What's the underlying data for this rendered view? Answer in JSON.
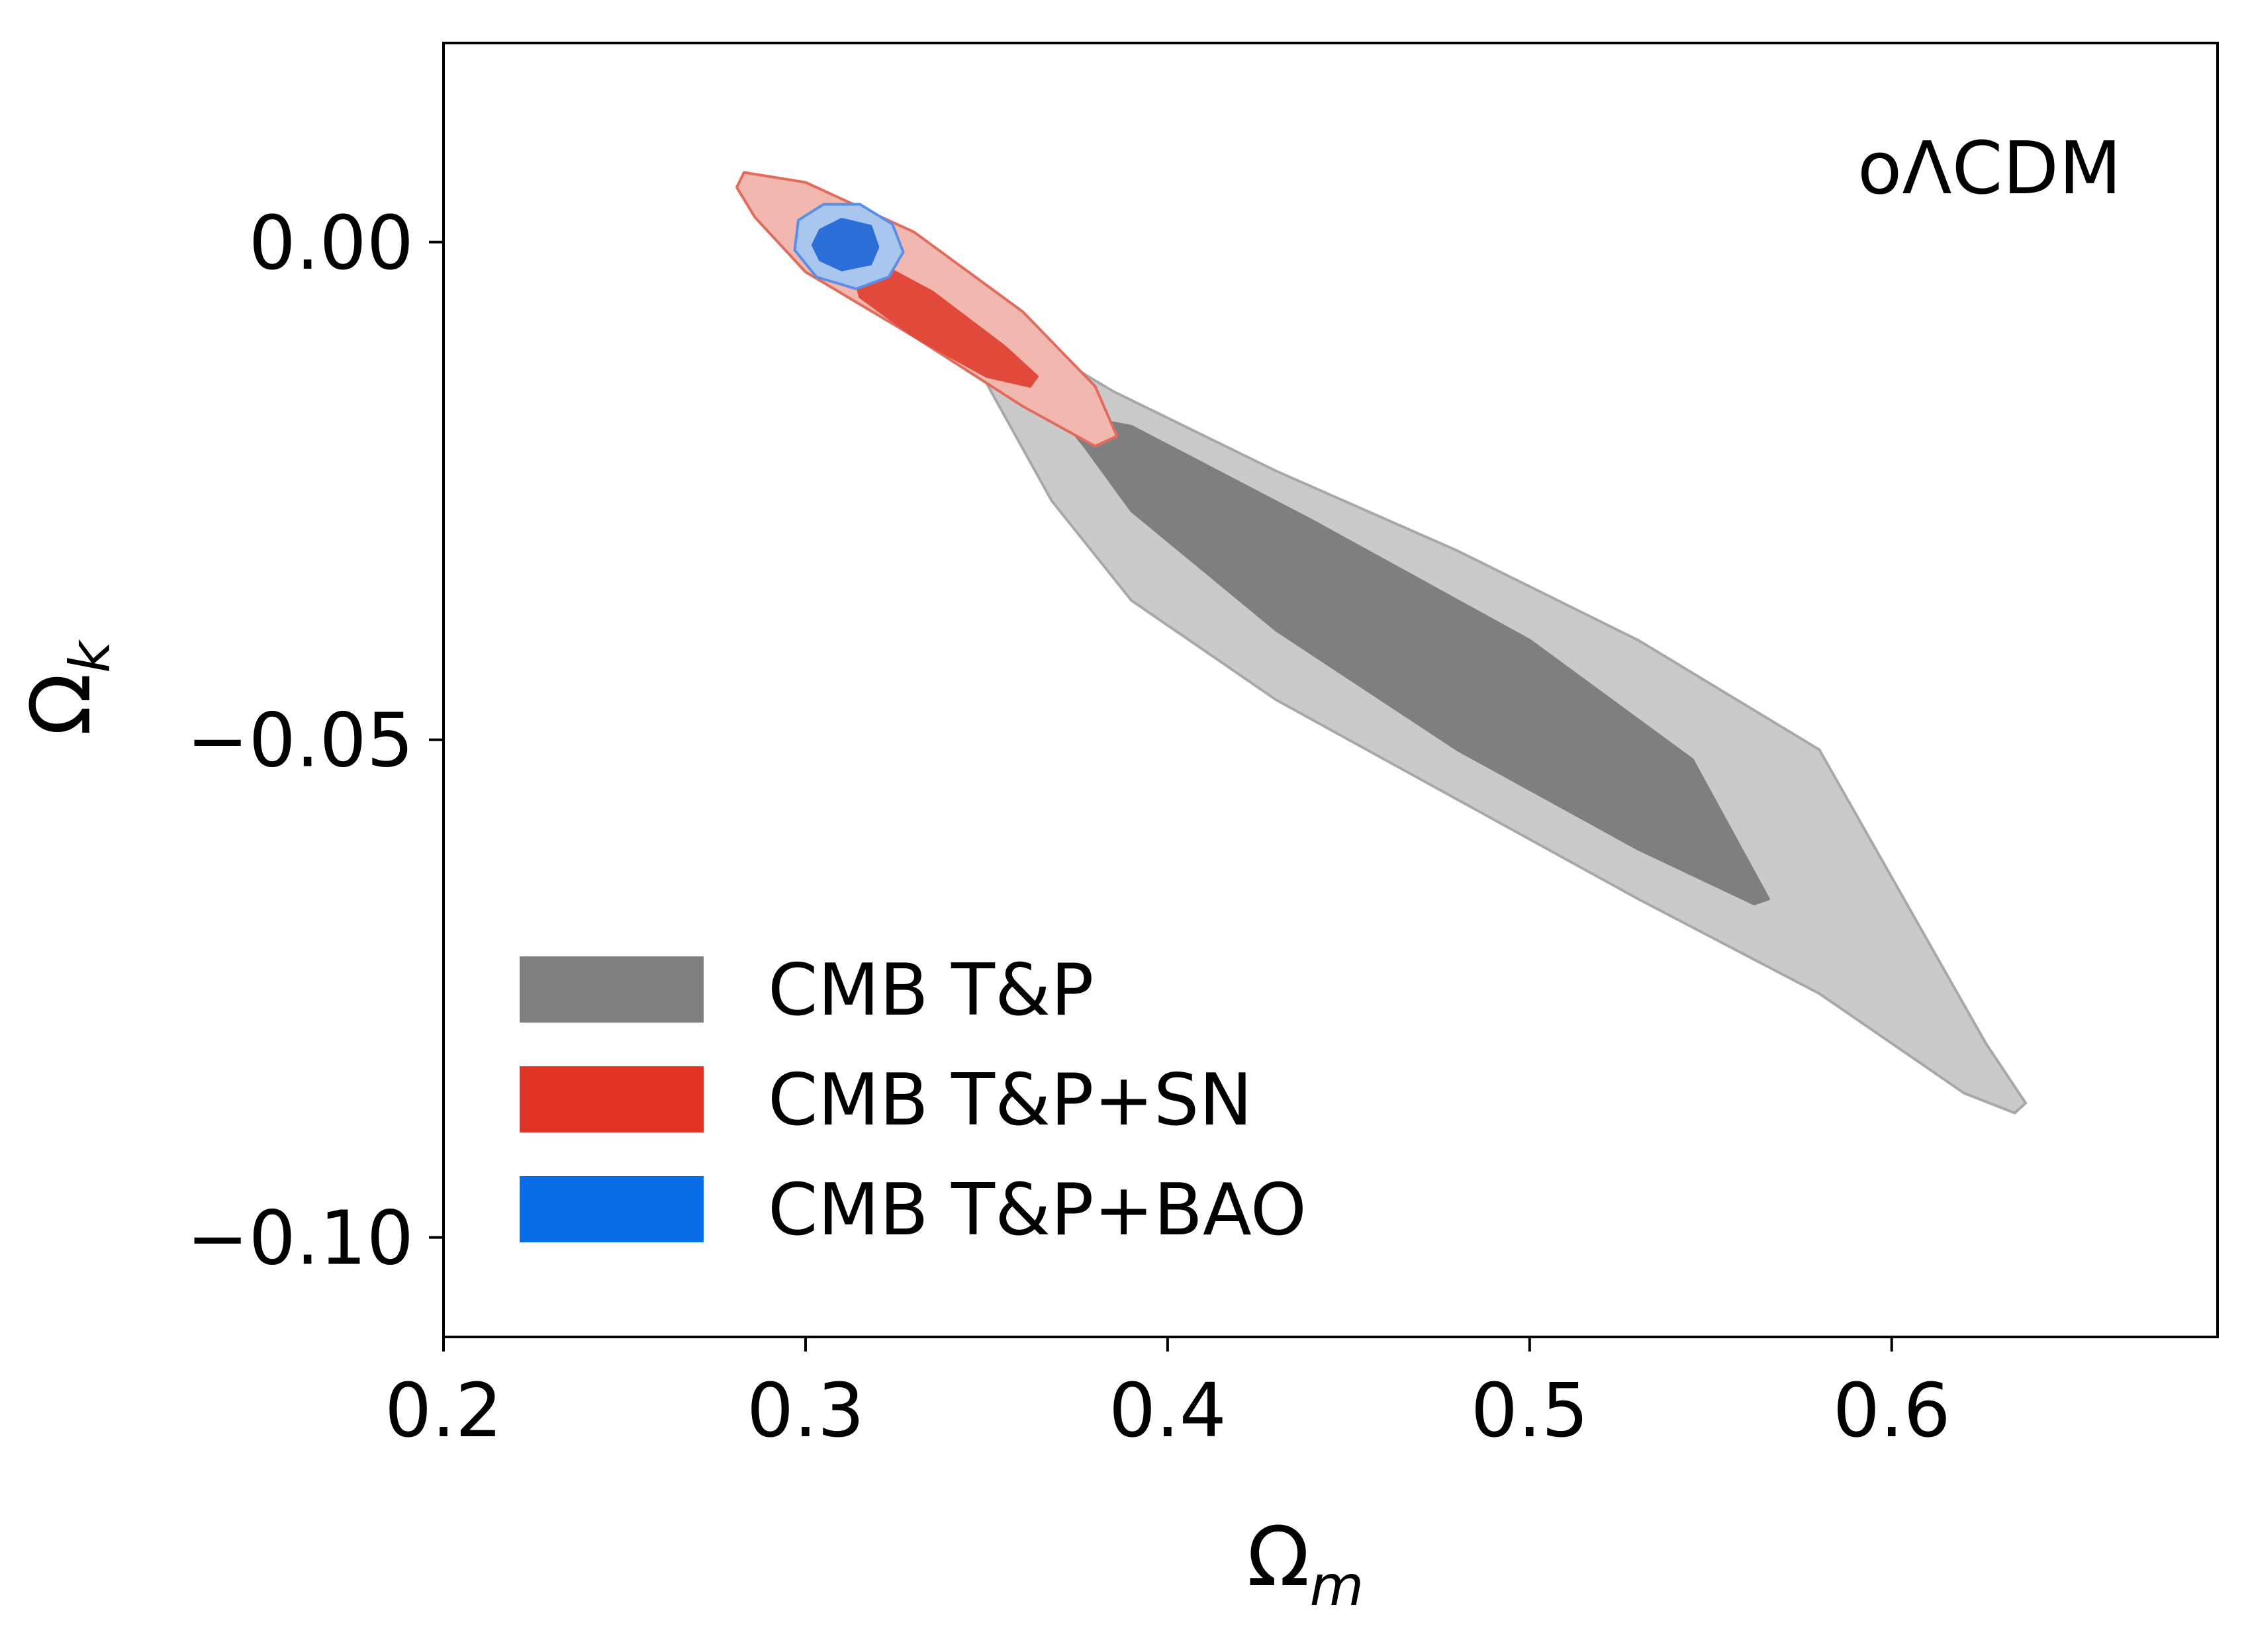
{
  "chart_data": {
    "type": "contour",
    "annotation": "oΛCDM",
    "xlabel": {
      "main": "Ω",
      "sub": "m"
    },
    "ylabel": {
      "main": "Ω",
      "sub": "k"
    },
    "xlim": [
      0.2,
      0.69
    ],
    "ylim": [
      -0.11,
      0.02
    ],
    "xticks": [
      0.2,
      0.3,
      0.4,
      0.5,
      0.6
    ],
    "xtick_labels": [
      "0.2",
      "0.3",
      "0.4",
      "0.5",
      "0.6"
    ],
    "yticks": [
      0.0,
      -0.05,
      -0.1
    ],
    "ytick_labels": [
      "0.00",
      "−0.05",
      "−0.10"
    ],
    "grid": false,
    "legend_position": "lower-left",
    "series": [
      {
        "name": "CMB T&P",
        "color_outer": "#cacaca",
        "color_inner": "#7f7f7f",
        "edge_outer": "#a8a8a8",
        "edge_inner": "#7f7f7f",
        "legend_color": "#808080",
        "contours": [
          [
            [
              0.342,
              -0.0065
            ],
            [
              0.355,
              -0.0085
            ],
            [
              0.385,
              -0.015
            ],
            [
              0.43,
              -0.023
            ],
            [
              0.48,
              -0.031
            ],
            [
              0.53,
              -0.04
            ],
            [
              0.58,
              -0.051
            ],
            [
              0.626,
              -0.0805
            ],
            [
              0.637,
              -0.0865
            ],
            [
              0.634,
              -0.0875
            ],
            [
              0.62,
              -0.0855
            ],
            [
              0.58,
              -0.0755
            ],
            [
              0.53,
              -0.066
            ],
            [
              0.48,
              -0.056
            ],
            [
              0.43,
              -0.046
            ],
            [
              0.39,
              -0.036
            ],
            [
              0.368,
              -0.026
            ],
            [
              0.352,
              -0.0155
            ],
            [
              0.343,
              -0.0095
            ],
            [
              0.339,
              -0.0072
            ]
          ],
          [
            [
              0.375,
              -0.0175
            ],
            [
              0.39,
              -0.0185
            ],
            [
              0.44,
              -0.028
            ],
            [
              0.5,
              -0.04
            ],
            [
              0.545,
              -0.052
            ],
            [
              0.566,
              -0.066
            ],
            [
              0.562,
              -0.0665
            ],
            [
              0.53,
              -0.061
            ],
            [
              0.48,
              -0.051
            ],
            [
              0.43,
              -0.039
            ],
            [
              0.39,
              -0.027
            ],
            [
              0.377,
              -0.0205
            ],
            [
              0.372,
              -0.0183
            ]
          ]
        ]
      },
      {
        "name": "CMB T&P+SN",
        "color_outer": "#f2b8b0",
        "color_inner": "#e14a3a",
        "edge_outer": "#e36b5c",
        "edge_inner": "#e14a3a",
        "legend_color": "#e03525",
        "contours": [
          [
            [
              0.283,
              0.007
            ],
            [
              0.3,
              0.006
            ],
            [
              0.33,
              0.001
            ],
            [
              0.36,
              -0.007
            ],
            [
              0.38,
              -0.0145
            ],
            [
              0.386,
              -0.0195
            ],
            [
              0.38,
              -0.0205
            ],
            [
              0.36,
              -0.0165
            ],
            [
              0.33,
              -0.0095
            ],
            [
              0.3,
              -0.003
            ],
            [
              0.286,
              0.0025
            ],
            [
              0.281,
              0.0055
            ]
          ],
          [
            [
              0.317,
              -0.0015
            ],
            [
              0.335,
              -0.005
            ],
            [
              0.355,
              -0.0105
            ],
            [
              0.364,
              -0.0135
            ],
            [
              0.362,
              -0.0145
            ],
            [
              0.35,
              -0.0135
            ],
            [
              0.33,
              -0.0095
            ],
            [
              0.315,
              -0.0055
            ],
            [
              0.313,
              -0.0025
            ]
          ]
        ]
      },
      {
        "name": "CMB T&P+BAO",
        "color_outer": "#a9c6ef",
        "color_inner": "#2c6ed8",
        "edge_outer": "#5b8ee6",
        "edge_inner": "#2c6ed8",
        "legend_color": "#0a6de8",
        "contours": [
          [
            [
              0.298,
              0.0022
            ],
            [
              0.305,
              0.0038
            ],
            [
              0.315,
              0.0038
            ],
            [
              0.324,
              0.0018
            ],
            [
              0.327,
              -0.001
            ],
            [
              0.323,
              -0.0035
            ],
            [
              0.314,
              -0.0047
            ],
            [
              0.303,
              -0.0035
            ],
            [
              0.297,
              -0.0008
            ]
          ],
          [
            [
              0.304,
              0.0012
            ],
            [
              0.31,
              0.0023
            ],
            [
              0.318,
              0.0016
            ],
            [
              0.32,
              -0.0005
            ],
            [
              0.318,
              -0.0022
            ],
            [
              0.31,
              -0.0028
            ],
            [
              0.304,
              -0.0018
            ],
            [
              0.302,
              -0.0003
            ]
          ]
        ]
      }
    ]
  }
}
